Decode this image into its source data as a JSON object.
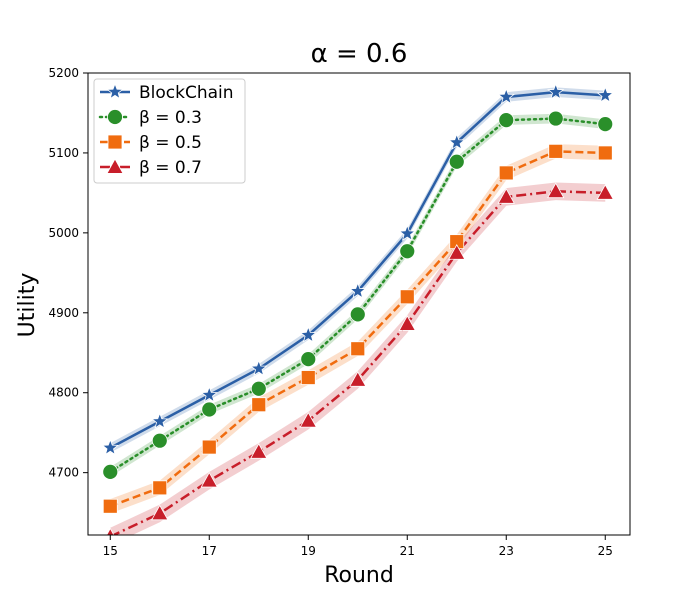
{
  "chart_data": {
    "type": "line",
    "title": "α = 0.6",
    "xlabel": "Round",
    "ylabel": "Utility",
    "x": [
      15,
      16,
      17,
      18,
      19,
      20,
      21,
      22,
      23,
      24,
      25
    ],
    "xticks": [
      15,
      17,
      19,
      21,
      23,
      25
    ],
    "xlim": [
      14.55,
      25.5
    ],
    "ylim": [
      4622,
      5200
    ],
    "yticks": [
      4700,
      4800,
      4900,
      5000,
      5100,
      5200
    ],
    "legend_position": "top-left",
    "series": [
      {
        "name": "BlockChain",
        "color": "#2b5fa6",
        "marker": "star",
        "linestyle": "solid",
        "values": [
          4731,
          4764,
          4797,
          4830,
          4872,
          4927,
          4999,
          5113,
          5170,
          5176,
          5172
        ],
        "band": 6
      },
      {
        "name": "β = 0.3",
        "color": "#2a8f2a",
        "marker": "circle",
        "linestyle": "dotted",
        "values": [
          4701,
          4740,
          4779,
          4805,
          4842,
          4898,
          4977,
          5089,
          5141,
          5143,
          5136
        ],
        "band": 6
      },
      {
        "name": "β = 0.5",
        "color": "#f06c0f",
        "marker": "square",
        "linestyle": "dashed",
        "values": [
          4658,
          4681,
          4732,
          4785,
          4819,
          4855,
          4920,
          4989,
          5075,
          5102,
          5100
        ],
        "band": 9
      },
      {
        "name": "β = 0.7",
        "color": "#c81e2a",
        "marker": "triangle",
        "linestyle": "dashdot",
        "values": [
          4620,
          4649,
          4690,
          4726,
          4765,
          4816,
          4886,
          4975,
          5045,
          5052,
          5050
        ],
        "band": 11
      }
    ]
  }
}
